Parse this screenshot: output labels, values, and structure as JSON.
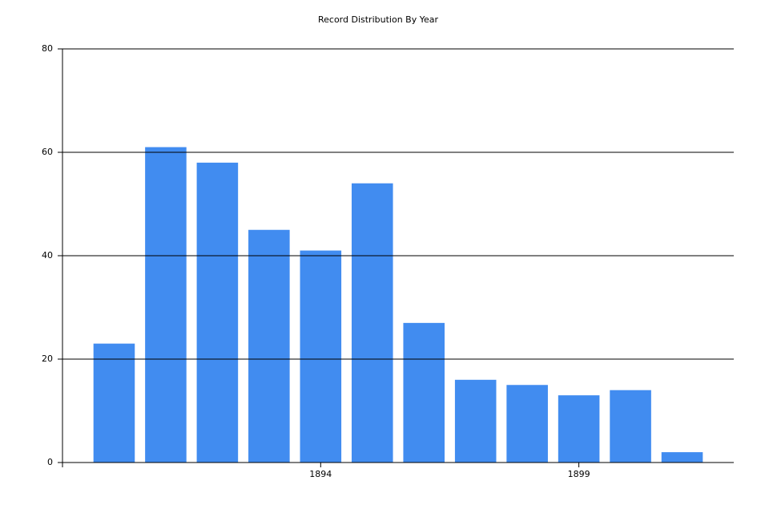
{
  "chart_data": {
    "type": "bar",
    "title": "Record Distribution By Year",
    "x": [
      1890,
      1891,
      1892,
      1893,
      1894,
      1895,
      1896,
      1897,
      1898,
      1899,
      1900,
      1901
    ],
    "values": [
      23,
      61,
      58,
      45,
      41,
      54,
      27,
      16,
      15,
      13,
      14,
      2
    ],
    "color": "#418cf0",
    "xlim": [
      1889,
      1902
    ],
    "xticks": [
      1894,
      1899
    ],
    "ylim": [
      0,
      80
    ],
    "yticks": [
      0,
      20,
      40,
      60,
      80
    ],
    "grid": true
  }
}
